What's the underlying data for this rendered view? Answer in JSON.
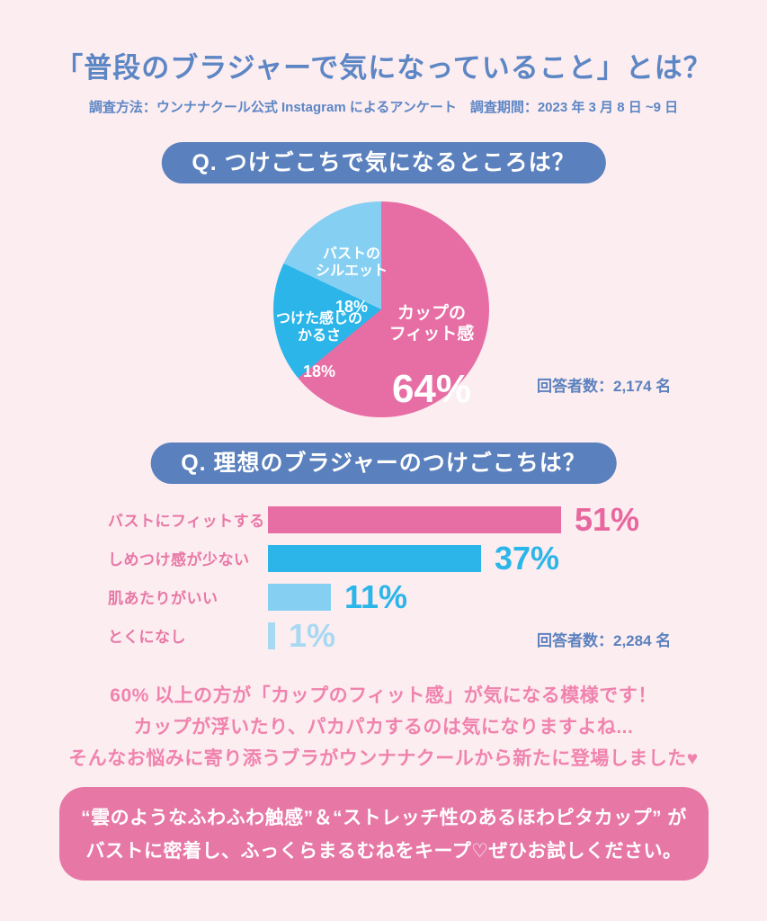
{
  "page": {
    "title": "「普段のブラジャーで気になっていること」とは？",
    "subtitle": "調査方法：ウンナナクール公式 Instagram によるアンケート　調査期間：2023 年 3 月 8 日 ~9 日"
  },
  "colors": {
    "background": "#fcedf0",
    "title_blue": "#5d86c5",
    "banner_blue": "#5a80bd",
    "pink": "#e76ea4",
    "cyan": "#2cb5e9",
    "light_blue": "#85cff3",
    "pale_blue": "#a8d9f3",
    "message_pink": "#f083ae",
    "cta_box_pink": "#e778a6",
    "white": "#ffffff"
  },
  "chart_data": [
    {
      "type": "pie",
      "question": "Q. つけごこちで気になるところは？",
      "respondents": "回答者数：2,174 名",
      "start": "12-o'clock, clockwise",
      "legend_position": "labels inside slices",
      "slices": [
        {
          "name": "カップのフィット感",
          "label": "カップの\nフィット感",
          "pct": "64%",
          "value": 64,
          "color": "#e76ea4"
        },
        {
          "name": "つけた感じのかるさ",
          "label": "つけた感じの\nかるさ",
          "pct": "18%",
          "value": 18,
          "color": "#2cb5e9"
        },
        {
          "name": "バストのシルエット",
          "label": "バストの\nシルエット",
          "pct": "18%",
          "value": 18,
          "color": "#85cff3"
        }
      ]
    },
    {
      "type": "bar",
      "question": "Q. 理想のブラジャーのつけごこちは？",
      "respondents": "回答者数：2,284 名",
      "orientation": "horizontal",
      "xlim": [
        0,
        100
      ],
      "grid": false,
      "categories": [
        "バストにフィットする",
        "しめつけ感が少ない",
        "肌あたりがいい",
        "とくになし"
      ],
      "values": [
        51,
        37,
        11,
        1
      ],
      "value_labels": [
        "51%",
        "37%",
        "11%",
        "1%"
      ],
      "bar_colors": [
        "#e76ea4",
        "#2cb5e9",
        "#85cff3",
        "#a8d9f3"
      ],
      "pct_colors": [
        "#e7679e",
        "#2cb5e9",
        "#2cb5e9",
        "#a8d9f3"
      ],
      "label_color": "#e878a6"
    }
  ],
  "message": {
    "lines": [
      "60% 以上の方が「カップのフィット感」が気になる模様です！",
      "カップが浮いたり、パカパカするのは気になりますよね...",
      "そんなお悩みに寄り添うブラがウンナナクールから新たに登場しました♥"
    ]
  },
  "cta": {
    "lines": [
      "“雲のようなふわふわ触感”＆“ストレッチ性のあるほわピタカップ” が",
      "バストに密着し、ふっくらまるむねをキープ♡ぜひお試しください。"
    ]
  }
}
